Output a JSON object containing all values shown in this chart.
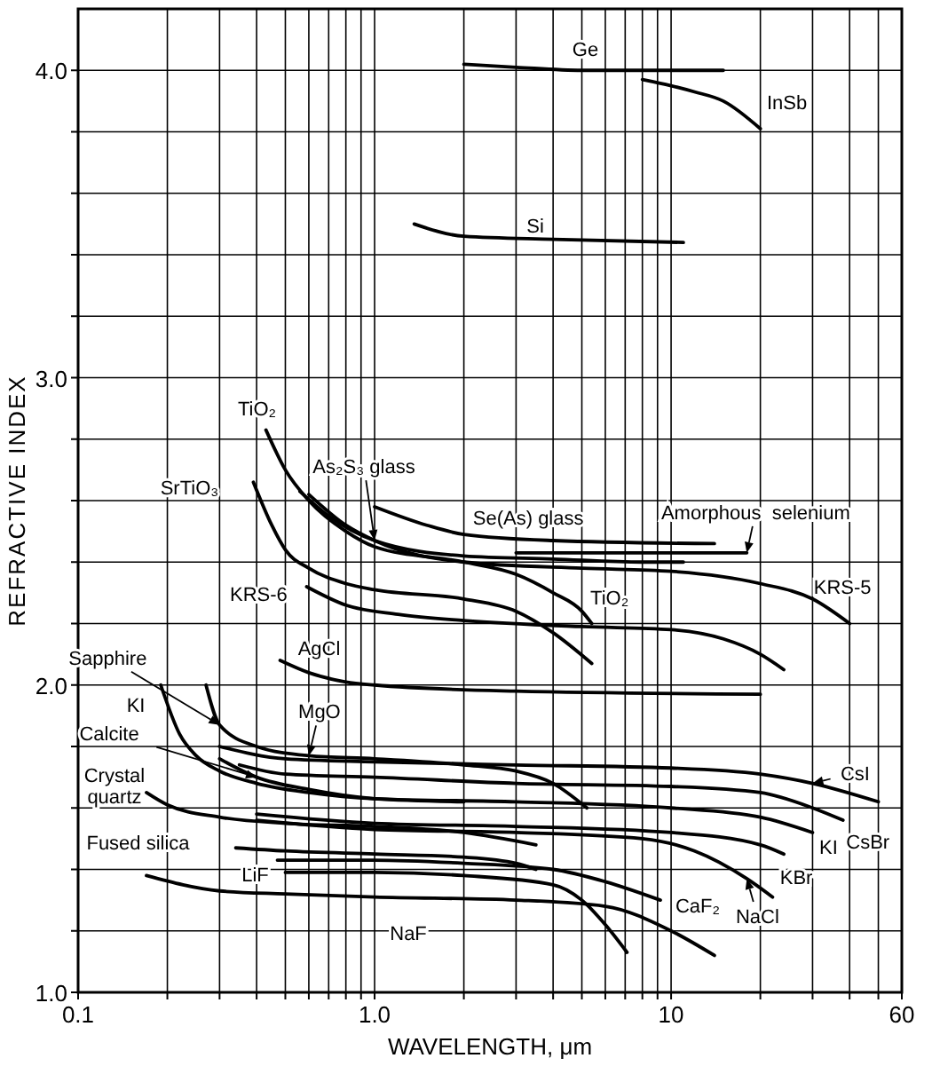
{
  "chart_data": {
    "type": "line",
    "xlabel": "WAVELENGTH, μm",
    "ylabel": "REFRACTIVE INDEX",
    "log": "x",
    "grid": true,
    "marker": "none",
    "line_style": "solid",
    "xlim": [
      0.1,
      60
    ],
    "ylim": [
      1.0,
      4.2
    ],
    "xticks": [
      0.1,
      {
        "value": 0.2,
        "label": null
      },
      {
        "value": 0.3,
        "label": null
      },
      {
        "value": 0.4,
        "label": null
      },
      {
        "value": 0.5,
        "label": null
      },
      {
        "value": 0.6,
        "label": null
      },
      {
        "value": 0.7,
        "label": null
      },
      {
        "value": 0.8,
        "label": null
      },
      {
        "value": 0.9,
        "label": null
      },
      {
        "value": 1,
        "label": "1.0"
      },
      {
        "value": 2,
        "label": null
      },
      {
        "value": 3,
        "label": null
      },
      {
        "value": 4,
        "label": null
      },
      {
        "value": 5,
        "label": null
      },
      {
        "value": 6,
        "label": null
      },
      {
        "value": 7,
        "label": null
      },
      {
        "value": 8,
        "label": null
      },
      {
        "value": 9,
        "label": null
      },
      10,
      {
        "value": 20,
        "label": null
      },
      {
        "value": 30,
        "label": null
      },
      {
        "value": 40,
        "label": null
      },
      {
        "value": 50,
        "label": null
      },
      60
    ],
    "yticks": [
      {
        "value": 1,
        "label": "1.0"
      },
      {
        "value": 1.2,
        "label": null
      },
      {
        "value": 1.4,
        "label": null
      },
      {
        "value": 1.6,
        "label": null
      },
      {
        "value": 1.8,
        "label": null
      },
      {
        "value": 2,
        "label": "2.0"
      },
      {
        "value": 2.2,
        "label": null
      },
      {
        "value": 2.4,
        "label": null
      },
      {
        "value": 2.6,
        "label": null
      },
      {
        "value": 2.8,
        "label": null
      },
      {
        "value": 3,
        "label": "3.0"
      },
      {
        "value": 3.2,
        "label": null
      },
      {
        "value": 3.4,
        "label": null
      },
      {
        "value": 3.6,
        "label": null
      },
      {
        "value": 3.8,
        "label": null
      },
      {
        "value": 4,
        "label": "4.0"
      }
    ],
    "series": [
      {
        "color": "#000000",
        "x": [
          2,
          3,
          5,
          10,
          15
        ],
        "values": [
          4.02,
          4.01,
          4.0,
          4.0,
          4.0
        ]
      },
      {
        "color": "#000000",
        "x": [
          8,
          10,
          12,
          15,
          20
        ],
        "values": [
          3.97,
          3.95,
          3.93,
          3.9,
          3.81
        ]
      },
      {
        "color": "#000000",
        "x": [
          1.36,
          2,
          4,
          11
        ],
        "values": [
          3.5,
          3.46,
          3.45,
          3.44
        ]
      },
      {
        "color": "#000000",
        "x": [
          0.43,
          0.5,
          0.6,
          0.8,
          1,
          2,
          3,
          4,
          5,
          5.4
        ],
        "values": [
          2.83,
          2.7,
          2.6,
          2.5,
          2.45,
          2.4,
          2.36,
          2.3,
          2.24,
          2.2
        ]
      },
      {
        "color": "#000000",
        "x": [
          0.56,
          0.7,
          1,
          2,
          4,
          8,
          11
        ],
        "values": [
          2.63,
          2.55,
          2.47,
          2.42,
          2.41,
          2.4,
          2.4
        ]
      },
      {
        "color": "#000000",
        "x": [
          1,
          1.5,
          2,
          4,
          14
        ],
        "values": [
          2.58,
          2.52,
          2.49,
          2.47,
          2.46
        ]
      },
      {
        "color": "#000000",
        "x": [
          3,
          18
        ],
        "values": [
          2.43,
          2.43
        ]
      },
      {
        "color": "#000000",
        "x": [
          0.6,
          0.8,
          1,
          2,
          5,
          10,
          20,
          30,
          40
        ],
        "values": [
          2.62,
          2.52,
          2.47,
          2.4,
          2.38,
          2.37,
          2.33,
          2.28,
          2.2
        ]
      },
      {
        "color": "#000000",
        "x": [
          0.39,
          0.45,
          0.5,
          0.6,
          0.8,
          1,
          2,
          3,
          4,
          5.4
        ],
        "values": [
          2.66,
          2.52,
          2.44,
          2.38,
          2.33,
          2.31,
          2.28,
          2.24,
          2.17,
          2.07
        ]
      },
      {
        "color": "#000000",
        "x": [
          0.59,
          0.8,
          1.2,
          2,
          5,
          10,
          15,
          20,
          24
        ],
        "values": [
          2.32,
          2.26,
          2.23,
          2.21,
          2.19,
          2.18,
          2.15,
          2.1,
          2.05
        ]
      },
      {
        "color": "#000000",
        "x": [
          0.48,
          0.6,
          0.8,
          1,
          3,
          20
        ],
        "values": [
          2.08,
          2.04,
          2.01,
          2.0,
          1.98,
          1.97
        ]
      },
      {
        "color": "#000000",
        "x": [
          0.27,
          0.3,
          0.4,
          0.6,
          1,
          2,
          3,
          4,
          5.2
        ],
        "values": [
          2.0,
          1.87,
          1.8,
          1.77,
          1.76,
          1.74,
          1.72,
          1.68,
          1.6
        ]
      },
      {
        "color": "#000000",
        "x": [
          0.19,
          0.22,
          0.25,
          0.3,
          0.4,
          0.6,
          1,
          3,
          10,
          20,
          30
        ],
        "values": [
          2.0,
          1.84,
          1.77,
          1.72,
          1.68,
          1.65,
          1.63,
          1.62,
          1.6,
          1.57,
          1.52
        ]
      },
      {
        "color": "#000000",
        "x": [
          0.3,
          0.4,
          0.6,
          1,
          2
        ],
        "values": [
          1.76,
          1.7,
          1.66,
          1.63,
          1.62
        ]
      },
      {
        "color": "#000000",
        "x": [
          0.3,
          0.5,
          1,
          3,
          10,
          20,
          30,
          50
        ],
        "values": [
          1.8,
          1.76,
          1.75,
          1.74,
          1.73,
          1.71,
          1.68,
          1.62
        ]
      },
      {
        "color": "#000000",
        "x": [
          0.35,
          0.5,
          1,
          3,
          10,
          20,
          30,
          38
        ],
        "values": [
          1.74,
          1.71,
          1.7,
          1.68,
          1.67,
          1.65,
          1.6,
          1.56
        ]
      },
      {
        "color": "#000000",
        "x": [
          0.17,
          0.2,
          0.3,
          0.5,
          1,
          2,
          3.5
        ],
        "values": [
          1.65,
          1.61,
          1.57,
          1.55,
          1.54,
          1.52,
          1.48
        ]
      },
      {
        "color": "#000000",
        "x": [
          0.4,
          1,
          3,
          8,
          12,
          18,
          22
        ],
        "values": [
          1.56,
          1.53,
          1.52,
          1.5,
          1.46,
          1.37,
          1.31
        ]
      },
      {
        "color": "#000000",
        "x": [
          0.4,
          1,
          3,
          10,
          20,
          24
        ],
        "values": [
          1.58,
          1.55,
          1.54,
          1.52,
          1.48,
          1.45
        ]
      },
      {
        "color": "#000000",
        "x": [
          0.34,
          0.5,
          1,
          2,
          3,
          3.5
        ],
        "values": [
          1.47,
          1.46,
          1.45,
          1.44,
          1.42,
          1.4
        ]
      },
      {
        "color": "#000000",
        "x": [
          0.47,
          1,
          2,
          4,
          6,
          9.2
        ],
        "values": [
          1.43,
          1.43,
          1.42,
          1.4,
          1.36,
          1.3
        ]
      },
      {
        "color": "#000000",
        "x": [
          0.5,
          1,
          2,
          4,
          5,
          6,
          7.1
        ],
        "values": [
          1.39,
          1.39,
          1.38,
          1.35,
          1.3,
          1.22,
          1.13
        ]
      },
      {
        "color": "#000000",
        "x": [
          0.17,
          0.3,
          0.5,
          1,
          3,
          6,
          10,
          14
        ],
        "values": [
          1.38,
          1.33,
          1.32,
          1.31,
          1.3,
          1.28,
          1.2,
          1.12
        ]
      }
    ],
    "annotations": [
      {
        "text": "Ge",
        "x": 5,
        "y": 4.0
      },
      {
        "text": "InSb",
        "x": 20,
        "y": 3.81
      },
      {
        "text": "Si",
        "x": 4,
        "y": 3.45
      },
      {
        "text": "TiO₂",
        "x": 0.43,
        "y": 2.83
      },
      {
        "text": "SrTiO₃",
        "x": 0.39,
        "y": 2.66
      },
      {
        "text": "As₂S₃ glass",
        "x": 1,
        "y": 2.47
      },
      {
        "text": "Se(As) glass",
        "x": 4,
        "y": 2.47
      },
      {
        "text": "Amorphous  selenium",
        "x": 18,
        "y": 2.43
      },
      {
        "text": "KRS-6",
        "x": 0.59,
        "y": 2.32
      },
      {
        "text": "TiO₂",
        "x": 5.4,
        "y": 2.2
      },
      {
        "text": "KRS-5",
        "x": 40,
        "y": 2.2
      },
      {
        "text": "AgCl",
        "x": 0.48,
        "y": 2.08
      },
      {
        "text": "Sapphire",
        "x": 0.3,
        "y": 1.87
      },
      {
        "text": "KI",
        "x": 0.19,
        "y": 2.0
      },
      {
        "text": "Calcite",
        "x": 0.4,
        "y": 1.7
      },
      {
        "text": "MgO",
        "x": 0.6,
        "y": 1.77
      },
      {
        "text": "Crystal",
        "x": 0.17,
        "y": 1.65
      },
      {
        "text": "quartz",
        "x": 0.17,
        "y": 1.65
      },
      {
        "text": "Fused silica",
        "x": 0.34,
        "y": 1.47
      },
      {
        "text": "LiF",
        "x": 0.5,
        "y": 1.39
      },
      {
        "text": "NaF",
        "x": 1,
        "y": 1.31
      },
      {
        "text": "CaF₂",
        "x": 9.2,
        "y": 1.3
      },
      {
        "text": "NaCl",
        "x": 18,
        "y": 1.37
      },
      {
        "text": "KBr",
        "x": 24,
        "y": 1.45
      },
      {
        "text": "KI",
        "x": 30,
        "y": 1.52
      },
      {
        "text": "CsBr",
        "x": 38,
        "y": 1.56
      },
      {
        "text": "CsI",
        "x": 30,
        "y": 1.68
      }
    ]
  }
}
